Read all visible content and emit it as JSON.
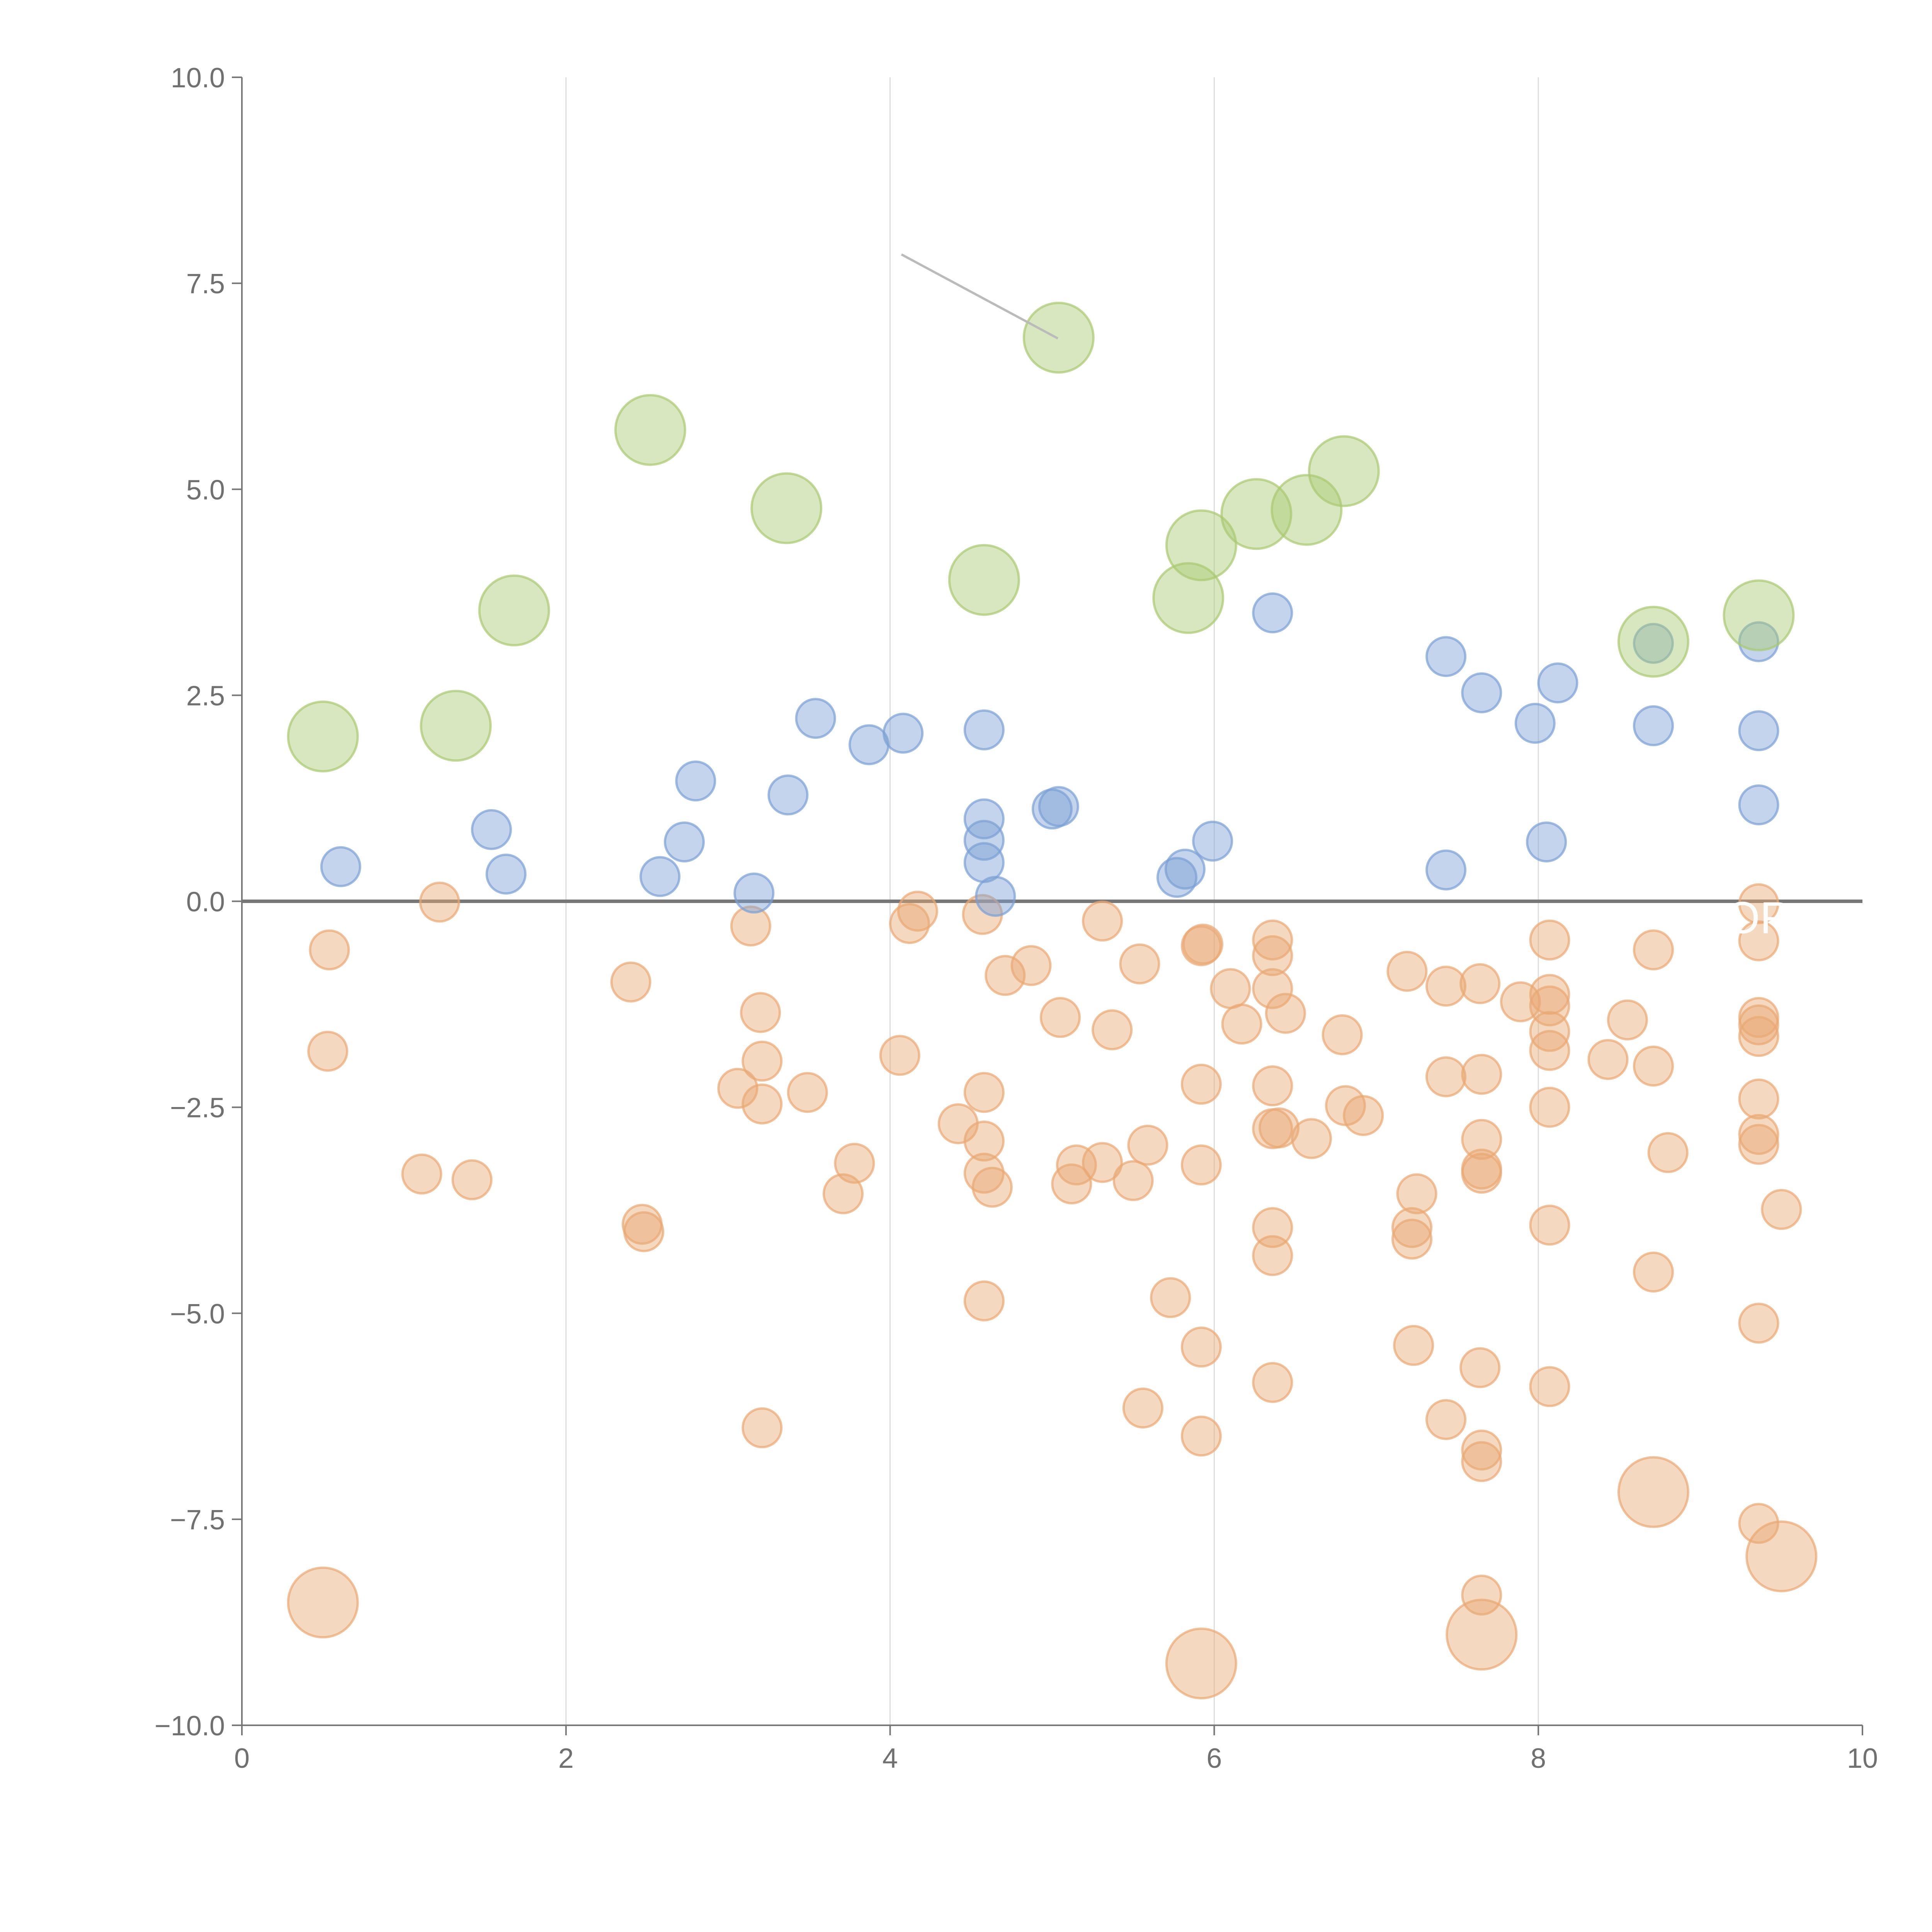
{
  "chart_data": {
    "type": "scatter",
    "title": "",
    "xlabel": "",
    "ylabel": "",
    "xlim": [
      0,
      10
    ],
    "ylim": [
      -10,
      10
    ],
    "x_ticks": [
      "0",
      "2",
      "4",
      "6",
      "8",
      "10"
    ],
    "y_ticks": [
      "10.0",
      "7.5",
      "5.0",
      "2.5",
      "0.0",
      "−2.5",
      "−5.0",
      "−7.5",
      "−10.0"
    ],
    "grid": "vertical",
    "baseline": 0,
    "series": [
      {
        "name": "green",
        "color": "#a9c970",
        "points": [
          [
            0.5,
            2.0
          ],
          [
            1.32,
            2.13
          ],
          [
            1.68,
            3.53
          ],
          [
            2.52,
            5.72
          ],
          [
            3.36,
            4.77
          ],
          [
            4.58,
            3.9
          ],
          [
            5.04,
            6.84
          ],
          [
            5.84,
            3.68
          ],
          [
            5.92,
            4.32
          ],
          [
            6.26,
            4.7
          ],
          [
            6.57,
            4.75
          ],
          [
            6.8,
            5.22
          ],
          [
            8.71,
            3.15
          ],
          [
            9.36,
            3.47
          ]
        ]
      },
      {
        "name": "blue",
        "color": "#7b9fd4",
        "points": [
          [
            0.61,
            0.42
          ],
          [
            1.54,
            0.87
          ],
          [
            1.63,
            0.33
          ],
          [
            2.58,
            0.3
          ],
          [
            2.73,
            0.72
          ],
          [
            2.8,
            1.46
          ],
          [
            3.16,
            0.1
          ],
          [
            3.37,
            1.29
          ],
          [
            3.54,
            2.22
          ],
          [
            3.87,
            1.9
          ],
          [
            4.08,
            2.04
          ],
          [
            4.58,
            2.08
          ],
          [
            4.58,
            1.0
          ],
          [
            4.58,
            0.74
          ],
          [
            4.58,
            0.47
          ],
          [
            4.65,
            0.06
          ],
          [
            5.0,
            1.12
          ],
          [
            5.04,
            1.15
          ],
          [
            5.77,
            0.29
          ],
          [
            5.82,
            0.39
          ],
          [
            5.99,
            0.73
          ],
          [
            6.36,
            3.5
          ],
          [
            7.43,
            2.97
          ],
          [
            7.43,
            0.38
          ],
          [
            7.65,
            2.53
          ],
          [
            7.98,
            2.16
          ],
          [
            8.05,
            0.72
          ],
          [
            8.12,
            2.65
          ],
          [
            8.71,
            3.13
          ],
          [
            8.71,
            2.13
          ],
          [
            9.36,
            3.15
          ],
          [
            9.36,
            2.07
          ],
          [
            9.36,
            1.17
          ]
        ]
      },
      {
        "name": "orange",
        "color": "#e9a873",
        "points": [
          [
            0.5,
            -8.51
          ],
          [
            0.53,
            -1.82
          ],
          [
            0.54,
            -0.59
          ],
          [
            1.11,
            -3.31
          ],
          [
            1.22,
            -0.01
          ],
          [
            1.42,
            -3.38
          ],
          [
            2.4,
            -0.98
          ],
          [
            2.47,
            -3.92
          ],
          [
            2.48,
            -4.01
          ],
          [
            3.06,
            -2.27
          ],
          [
            3.14,
            -0.3
          ],
          [
            3.2,
            -1.35
          ],
          [
            3.21,
            -1.94
          ],
          [
            3.21,
            -2.46
          ],
          [
            3.21,
            -6.39
          ],
          [
            3.49,
            -2.32
          ],
          [
            3.71,
            -3.55
          ],
          [
            3.78,
            -3.18
          ],
          [
            4.06,
            -1.87
          ],
          [
            4.12,
            -0.27
          ],
          [
            4.17,
            -0.12
          ],
          [
            4.42,
            -2.7
          ],
          [
            4.57,
            -0.16
          ],
          [
            4.58,
            -2.32
          ],
          [
            4.58,
            -2.91
          ],
          [
            4.58,
            -3.3
          ],
          [
            4.58,
            -4.85
          ],
          [
            4.63,
            -3.47
          ],
          [
            4.71,
            -0.9
          ],
          [
            4.87,
            -0.78
          ],
          [
            5.05,
            -1.41
          ],
          [
            5.12,
            -3.43
          ],
          [
            5.15,
            -3.2
          ],
          [
            5.31,
            -0.24
          ],
          [
            5.31,
            -3.17
          ],
          [
            5.37,
            -1.56
          ],
          [
            5.5,
            -3.39
          ],
          [
            5.54,
            -0.76
          ],
          [
            5.56,
            -6.15
          ],
          [
            5.59,
            -2.96
          ],
          [
            5.73,
            -4.81
          ],
          [
            5.92,
            -0.54
          ],
          [
            5.93,
            -0.52
          ],
          [
            5.92,
            -2.22
          ],
          [
            5.92,
            -3.2
          ],
          [
            5.92,
            -5.41
          ],
          [
            5.92,
            -6.49
          ],
          [
            5.92,
            -9.25
          ],
          [
            6.1,
            -1.06
          ],
          [
            6.17,
            -1.49
          ],
          [
            6.36,
            -0.47
          ],
          [
            6.36,
            -0.66
          ],
          [
            6.36,
            -1.06
          ],
          [
            6.36,
            -2.24
          ],
          [
            6.36,
            -2.76
          ],
          [
            6.4,
            -2.75
          ],
          [
            6.36,
            -3.96
          ],
          [
            6.36,
            -4.3
          ],
          [
            6.36,
            -5.84
          ],
          [
            6.44,
            -1.36
          ],
          [
            6.6,
            -2.88
          ],
          [
            6.79,
            -1.62
          ],
          [
            6.81,
            -2.48
          ],
          [
            6.92,
            -2.6
          ],
          [
            7.19,
            -0.85
          ],
          [
            7.22,
            -3.96
          ],
          [
            7.22,
            -4.1
          ],
          [
            7.23,
            -5.39
          ],
          [
            7.25,
            -3.55
          ],
          [
            7.43,
            -1.03
          ],
          [
            7.43,
            -2.13
          ],
          [
            7.43,
            -6.29
          ],
          [
            7.64,
            -1.0
          ],
          [
            7.65,
            -2.1
          ],
          [
            7.65,
            -2.89
          ],
          [
            7.65,
            -3.25
          ],
          [
            7.65,
            -3.3
          ],
          [
            7.64,
            -5.66
          ],
          [
            7.65,
            -6.66
          ],
          [
            7.65,
            -6.8
          ],
          [
            7.65,
            -8.42
          ],
          [
            7.65,
            -8.9
          ],
          [
            7.89,
            -1.22
          ],
          [
            8.07,
            -0.47
          ],
          [
            8.07,
            -1.13
          ],
          [
            8.07,
            -1.27
          ],
          [
            8.07,
            -1.58
          ],
          [
            8.07,
            -1.81
          ],
          [
            8.07,
            -2.5
          ],
          [
            8.07,
            -3.93
          ],
          [
            8.07,
            -5.89
          ],
          [
            8.43,
            -1.92
          ],
          [
            8.55,
            -1.44
          ],
          [
            8.71,
            -0.59
          ],
          [
            8.71,
            -2.0
          ],
          [
            8.71,
            -4.5
          ],
          [
            8.71,
            -7.17
          ],
          [
            8.8,
            -3.05
          ],
          [
            9.36,
            -0.03
          ],
          [
            9.36,
            -0.48
          ],
          [
            9.36,
            -1.41
          ],
          [
            9.36,
            -1.5
          ],
          [
            9.36,
            -1.64
          ],
          [
            9.36,
            -2.4
          ],
          [
            9.36,
            -2.83
          ],
          [
            9.36,
            -2.95
          ],
          [
            9.36,
            -5.12
          ],
          [
            9.36,
            -7.55
          ],
          [
            9.5,
            -3.74
          ],
          [
            9.5,
            -7.95
          ]
        ]
      }
    ],
    "large_points": [
      {
        "series": "green",
        "x": 0.5,
        "y": 2.0
      },
      {
        "series": "green",
        "x": 1.32,
        "y": 2.13
      },
      {
        "series": "green",
        "x": 1.68,
        "y": 3.53
      },
      {
        "series": "green",
        "x": 2.52,
        "y": 5.72
      },
      {
        "series": "green",
        "x": 3.36,
        "y": 4.77
      },
      {
        "series": "green",
        "x": 4.58,
        "y": 3.9
      },
      {
        "series": "green",
        "x": 5.04,
        "y": 6.84
      },
      {
        "series": "green",
        "x": 5.84,
        "y": 3.68
      },
      {
        "series": "green",
        "x": 5.92,
        "y": 4.32
      },
      {
        "series": "green",
        "x": 6.26,
        "y": 4.7
      },
      {
        "series": "green",
        "x": 6.57,
        "y": 4.75
      },
      {
        "series": "green",
        "x": 6.8,
        "y": 5.22
      },
      {
        "series": "green",
        "x": 8.71,
        "y": 3.15
      },
      {
        "series": "green",
        "x": 9.36,
        "y": 3.47
      },
      {
        "series": "orange",
        "x": 0.5,
        "y": -8.51
      },
      {
        "series": "orange",
        "x": 5.92,
        "y": -9.25
      },
      {
        "series": "orange",
        "x": 7.65,
        "y": -8.9
      },
      {
        "series": "orange",
        "x": 8.71,
        "y": -7.17
      },
      {
        "series": "orange",
        "x": 9.5,
        "y": -7.95
      }
    ],
    "annotations": [
      {
        "text": "OR",
        "x": 9.36,
        "y": -0.2
      }
    ],
    "leader_line": {
      "from": [
        4.07,
        7.85
      ],
      "to": [
        5.04,
        6.84
      ]
    }
  }
}
